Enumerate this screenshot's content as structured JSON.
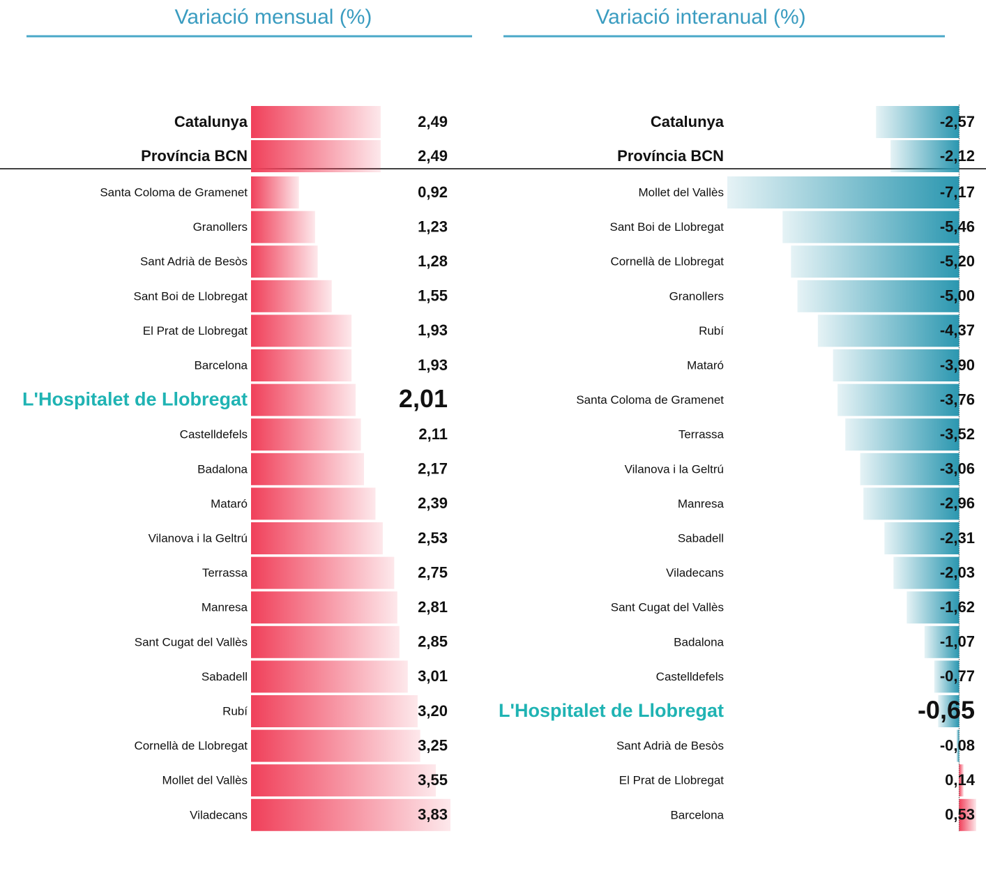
{
  "chart_data": [
    {
      "type": "bar",
      "orientation": "horizontal",
      "title": "Variació mensual (%)",
      "categories": [
        "Catalunya",
        "Província BCN",
        "Santa Coloma de Gramenet",
        "Granollers",
        "Sant Adrià de Besòs",
        "Sant Boi de Llobregat",
        "El Prat de Llobregat",
        "Barcelona",
        "L'Hospitalet de Llobregat",
        "Castelldefels",
        "Badalona",
        "Mataró",
        "Vilanova i la Geltrú",
        "Terrassa",
        "Manresa",
        "Sant Cugat del Vallès",
        "Sabadell",
        "Rubí",
        "Cornellà de Llobregat",
        "Mollet del Vallès",
        "Viladecans"
      ],
      "values": [
        2.49,
        2.49,
        0.92,
        1.23,
        1.28,
        1.55,
        1.93,
        1.93,
        2.01,
        2.11,
        2.17,
        2.39,
        2.53,
        2.75,
        2.81,
        2.85,
        3.01,
        3.2,
        3.25,
        3.55,
        3.83
      ],
      "value_labels": [
        "2,49",
        "2,49",
        "0,92",
        "1,23",
        "1,28",
        "1,55",
        "1,93",
        "1,93",
        "2,01",
        "2,11",
        "2,17",
        "2,39",
        "2,53",
        "2,75",
        "2,81",
        "2,85",
        "3,01",
        "3,20",
        "3,25",
        "3,55",
        "3,83"
      ],
      "color": "#f0405a",
      "negative_color": "#2b97b0",
      "highlight_index": 8,
      "highlight_color": "#1fb3b3"
    },
    {
      "type": "bar",
      "orientation": "horizontal",
      "title": "Variació interanual (%)",
      "categories": [
        "Catalunya",
        "Província BCN",
        "Mollet del Vallès",
        "Sant Boi de Llobregat",
        "Cornellà de Llobregat",
        "Granollers",
        "Rubí",
        "Mataró",
        "Santa Coloma de Gramenet",
        "Terrassa",
        "Vilanova i la Geltrú",
        "Manresa",
        "Sabadell",
        "Viladecans",
        "Sant Cugat del Vallès",
        "Badalona",
        "Castelldefels",
        "L'Hospitalet de Llobregat",
        "Sant Adrià de Besòs",
        "El Prat de Llobregat",
        "Barcelona"
      ],
      "values": [
        -2.57,
        -2.12,
        -7.17,
        -5.46,
        -5.2,
        -5.0,
        -4.37,
        -3.9,
        -3.76,
        -3.52,
        -3.06,
        -2.96,
        -2.31,
        -2.03,
        -1.62,
        -1.07,
        -0.77,
        -0.65,
        -0.08,
        0.14,
        0.53
      ],
      "value_labels": [
        "-2,57",
        "-2,12",
        "-7,17",
        "-5,46",
        "-5,20",
        "-5,00",
        "-4,37",
        "-3,90",
        "-3,76",
        "-3,52",
        "-3,06",
        "-2,96",
        "-2,31",
        "-2,03",
        "-1,62",
        "-1,07",
        "-0,77",
        "-0,65",
        "-0,08",
        "0,14",
        "0,53"
      ],
      "color": "#f0405a",
      "negative_color": "#2b97b0",
      "highlight_index": 17,
      "highlight_color": "#1fb3b3"
    }
  ]
}
